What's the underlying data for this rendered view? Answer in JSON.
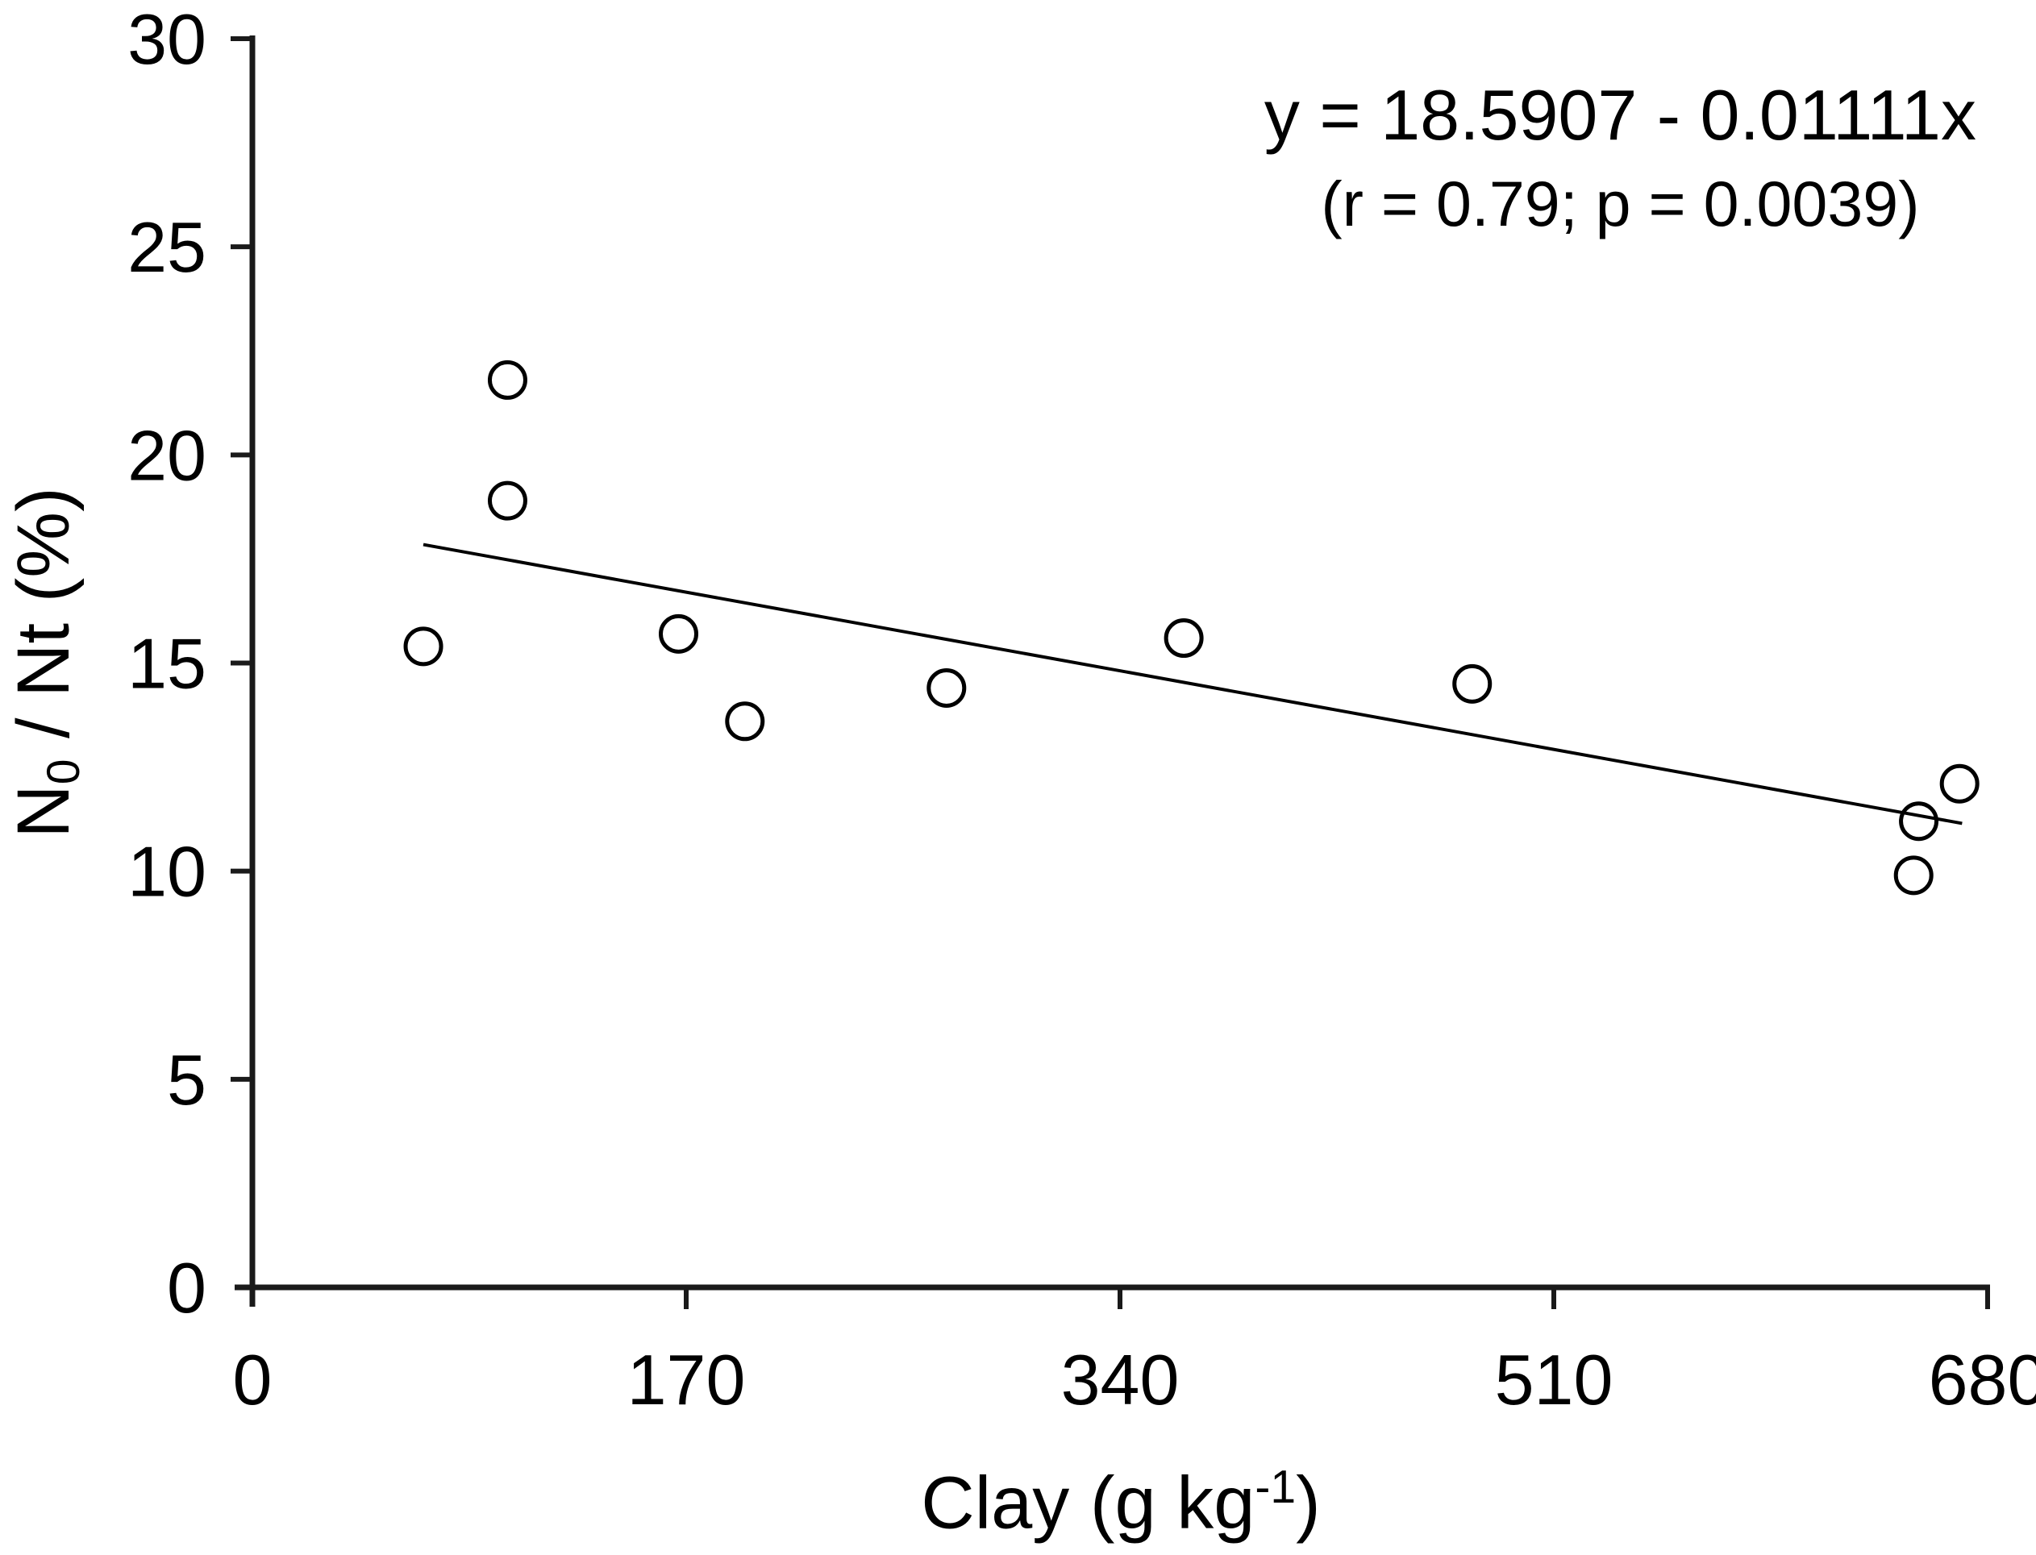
{
  "figure": {
    "background": "#ffffff"
  },
  "chart_data": {
    "type": "scatter",
    "title": "",
    "xlabel": {
      "prefix": "Clay (g kg",
      "sup": "-1",
      "suffix": ")"
    },
    "ylabel": {
      "prefix": "N",
      "sub": "0",
      "suffix": " / Nt (%)"
    },
    "xlim": [
      0,
      680
    ],
    "ylim": [
      0,
      30
    ],
    "x_ticks": [
      0,
      170,
      340,
      510,
      680
    ],
    "y_ticks": [
      0,
      5,
      10,
      15,
      20,
      25,
      30
    ],
    "grid": false,
    "legend": null,
    "marker": "open-circle",
    "points": [
      {
        "x": 67,
        "y": 15.4
      },
      {
        "x": 100,
        "y": 21.8
      },
      {
        "x": 100,
        "y": 18.9
      },
      {
        "x": 167,
        "y": 15.7
      },
      {
        "x": 193,
        "y": 13.6
      },
      {
        "x": 272,
        "y": 14.4
      },
      {
        "x": 365,
        "y": 15.6
      },
      {
        "x": 478,
        "y": 14.5
      },
      {
        "x": 651,
        "y": 9.9
      },
      {
        "x": 653,
        "y": 11.2
      },
      {
        "x": 669,
        "y": 12.1
      }
    ],
    "regression_line": {
      "intercept": 18.5907,
      "slope": -0.01111,
      "x_start": 67,
      "x_end": 670
    },
    "annotation": {
      "line1": "y = 18.5907 - 0.01111x",
      "line2": "(r = 0.79; p = 0.0039)"
    },
    "colors": {
      "ink": "#000000",
      "axis": "#1a1a1a",
      "background": "#ffffff"
    }
  }
}
